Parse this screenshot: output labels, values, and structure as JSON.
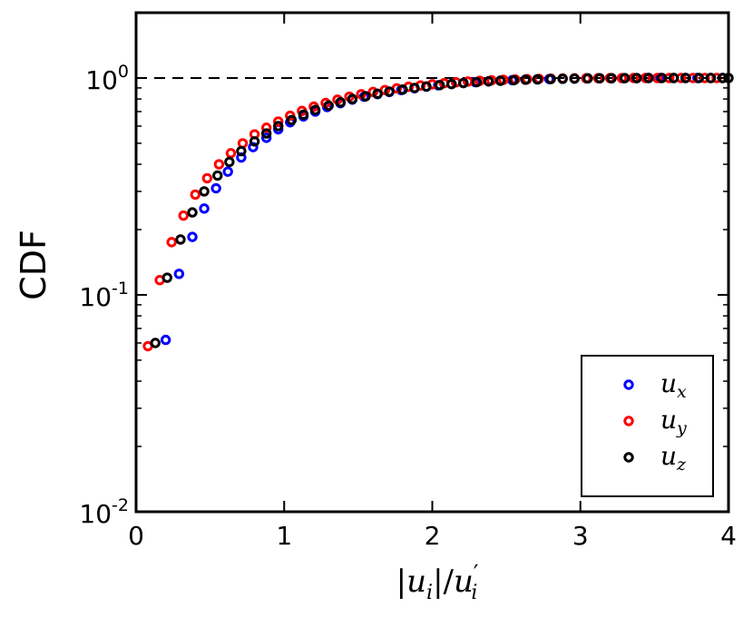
{
  "chart_data": {
    "type": "scatter",
    "yscale": "log",
    "xlabel": "|u_i|/u'_i",
    "xlabel_parts": {
      "bar_open": "|",
      "u": "u",
      "i1": "i",
      "bar_close": "|/",
      "u2": "u",
      "prime": "′",
      "i2": "i"
    },
    "ylabel": "CDF",
    "xlim": [
      0,
      4
    ],
    "ylim": [
      0.01,
      2.0
    ],
    "x_ticks": [
      "0",
      "1",
      "2",
      "3",
      "4"
    ],
    "y_ticks": [
      {
        "value": 0.01,
        "base": "10",
        "exp": "-2"
      },
      {
        "value": 0.1,
        "base": "10",
        "exp": "-1"
      },
      {
        "value": 1,
        "base": "10",
        "exp": "0"
      }
    ],
    "reference_line": {
      "y": 1.0,
      "style": "dashed",
      "color": "#000000"
    },
    "legend": {
      "position": "lower-right"
    },
    "series": [
      {
        "name": "u_x",
        "base": "u",
        "sub": "x",
        "color": "#0000ff",
        "x": [
          0.2,
          0.29,
          0.38,
          0.46,
          0.54,
          0.62,
          0.71,
          0.79,
          0.88,
          0.96,
          1.04,
          1.13,
          1.21,
          1.29,
          1.38,
          1.46,
          1.54,
          1.63,
          1.71,
          1.79,
          1.88,
          1.96,
          2.04,
          2.13,
          2.21,
          2.29,
          2.38,
          2.46,
          2.54,
          2.63,
          2.71,
          2.79,
          2.88,
          2.96,
          3.04,
          3.13,
          3.21,
          3.29,
          3.38,
          3.46,
          3.54,
          3.63,
          3.71,
          3.79,
          3.88,
          3.96
        ],
        "y": [
          0.062,
          0.125,
          0.185,
          0.25,
          0.31,
          0.37,
          0.43,
          0.48,
          0.53,
          0.58,
          0.625,
          0.665,
          0.7,
          0.735,
          0.765,
          0.795,
          0.82,
          0.843,
          0.862,
          0.88,
          0.897,
          0.912,
          0.926,
          0.938,
          0.948,
          0.957,
          0.965,
          0.972,
          0.977,
          0.982,
          0.986,
          0.989,
          0.992,
          0.994,
          0.996,
          0.997,
          0.998,
          0.999,
          0.999,
          1.0,
          1.0,
          1.0,
          1.0,
          1.0,
          1.0,
          1.0
        ]
      },
      {
        "name": "u_y",
        "base": "u",
        "sub": "y",
        "color": "#ff0000",
        "x": [
          0.08,
          0.16,
          0.24,
          0.32,
          0.4,
          0.48,
          0.56,
          0.64,
          0.72,
          0.8,
          0.88,
          0.96,
          1.04,
          1.12,
          1.2,
          1.28,
          1.36,
          1.44,
          1.52,
          1.6,
          1.68,
          1.76,
          1.84,
          1.92,
          2.0,
          2.08,
          2.16,
          2.24,
          2.32,
          2.4,
          2.48,
          2.56,
          2.64,
          2.72,
          2.8,
          2.88,
          2.96,
          3.04,
          3.12,
          3.2,
          3.28,
          3.36,
          3.44,
          3.52,
          3.6,
          3.68,
          3.76,
          3.84,
          3.92
        ],
        "y": [
          0.058,
          0.117,
          0.175,
          0.232,
          0.29,
          0.345,
          0.4,
          0.45,
          0.5,
          0.55,
          0.59,
          0.63,
          0.67,
          0.705,
          0.738,
          0.767,
          0.795,
          0.82,
          0.842,
          0.862,
          0.88,
          0.896,
          0.911,
          0.924,
          0.936,
          0.946,
          0.955,
          0.963,
          0.97,
          0.976,
          0.981,
          0.985,
          0.988,
          0.991,
          0.993,
          0.995,
          0.996,
          0.997,
          0.998,
          0.999,
          0.999,
          1.0,
          1.0,
          1.0,
          1.0,
          1.0,
          1.0,
          1.0,
          1.0
        ]
      },
      {
        "name": "u_z",
        "base": "u",
        "sub": "z",
        "color": "#000000",
        "x": [
          0.13,
          0.21,
          0.3,
          0.38,
          0.46,
          0.55,
          0.63,
          0.71,
          0.8,
          0.88,
          0.96,
          1.05,
          1.13,
          1.21,
          1.3,
          1.38,
          1.46,
          1.55,
          1.63,
          1.71,
          1.8,
          1.88,
          1.96,
          2.05,
          2.13,
          2.21,
          2.3,
          2.38,
          2.46,
          2.55,
          2.63,
          2.71,
          2.8,
          2.88,
          2.96,
          3.05,
          3.13,
          3.21,
          3.3,
          3.38,
          3.46,
          3.55,
          3.63,
          3.71,
          3.8,
          3.88,
          3.96,
          4.0
        ],
        "y": [
          0.06,
          0.12,
          0.18,
          0.24,
          0.3,
          0.355,
          0.41,
          0.46,
          0.51,
          0.555,
          0.6,
          0.64,
          0.678,
          0.712,
          0.745,
          0.773,
          0.8,
          0.824,
          0.846,
          0.866,
          0.884,
          0.9,
          0.914,
          0.927,
          0.938,
          0.948,
          0.957,
          0.965,
          0.971,
          0.977,
          0.982,
          0.986,
          0.989,
          0.992,
          0.994,
          0.996,
          0.997,
          0.998,
          0.999,
          0.999,
          1.0,
          1.0,
          1.0,
          1.0,
          1.0,
          1.0,
          1.0,
          1.0
        ]
      }
    ]
  }
}
